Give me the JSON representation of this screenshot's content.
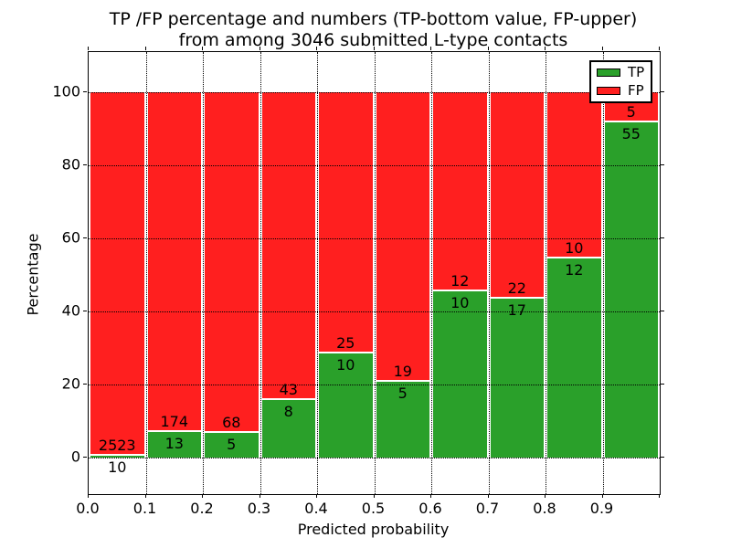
{
  "chart_data": {
    "type": "bar",
    "stacked": true,
    "normalized_to_percent": true,
    "title_line1": "TP /FP percentage and numbers (TP-bottom value, FP-upper)",
    "title_line2": "from among 3046 submitted L-type contacts",
    "title": "TP /FP percentage and numbers (TP-bottom value, FP-upper) from among 3046 submitted L-type contacts",
    "xlabel": "Predicted probability",
    "ylabel": "Percentage",
    "total_contacts": 3046,
    "bin_ranges": [
      "0.0-0.1",
      "0.1-0.2",
      "0.2-0.3",
      "0.3-0.4",
      "0.4-0.5",
      "0.5-0.6",
      "0.6-0.7",
      "0.7-0.8",
      "0.8-0.9",
      "0.9-1.0"
    ],
    "series": [
      {
        "name": "TP",
        "color": "#2aa02a",
        "counts": [
          10,
          13,
          5,
          8,
          10,
          5,
          10,
          17,
          12,
          55
        ]
      },
      {
        "name": "FP",
        "color": "#ff1f1f",
        "counts": [
          2523,
          174,
          68,
          43,
          25,
          19,
          12,
          22,
          10,
          5
        ]
      }
    ],
    "tp_percent_of_bin": [
      0.4,
      7.0,
      6.8,
      15.7,
      28.6,
      20.8,
      45.5,
      43.6,
      54.5,
      91.7
    ],
    "bar_label_note": "TP count printed at top of green segment, FP count printed at bottom of red segment",
    "x_ticks": [
      "0.0",
      "0.1",
      "0.2",
      "0.3",
      "0.4",
      "0.5",
      "0.6",
      "0.7",
      "0.8",
      "0.9"
    ],
    "y_ticks": [
      0,
      20,
      40,
      60,
      80,
      100
    ],
    "xlim": [
      0.0,
      1.0
    ],
    "ylim": [
      -10,
      111
    ],
    "grid": "dotted",
    "legend": {
      "position": "upper right",
      "entries": [
        {
          "label": "TP",
          "color": "#2aa02a"
        },
        {
          "label": "FP",
          "color": "#ff1f1f"
        }
      ]
    }
  }
}
